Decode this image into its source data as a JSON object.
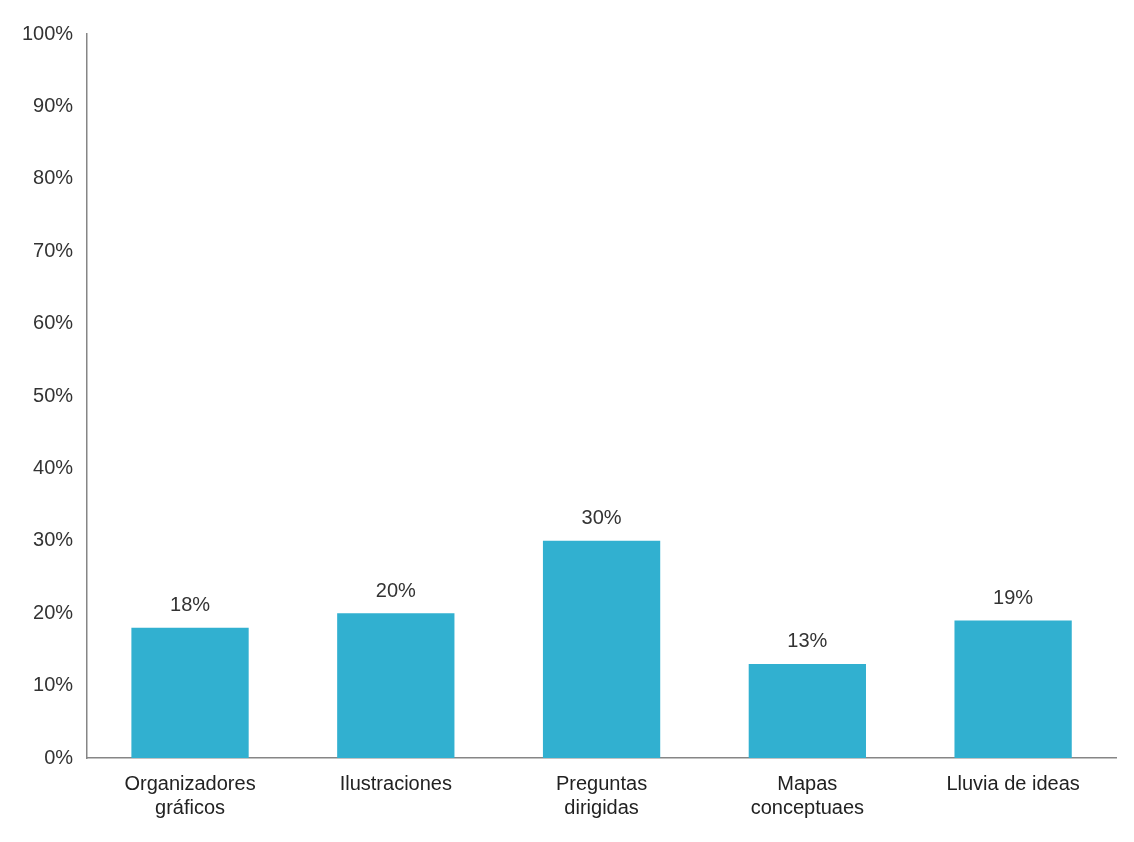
{
  "chart_data": {
    "type": "bar",
    "categories": [
      "Organizadores gráficos",
      "Ilustraciones",
      "Preguntas dirigidas",
      "Mapas conceptuaes",
      "Lluvia de ideas"
    ],
    "values": [
      18,
      20,
      30,
      13,
      19
    ],
    "value_labels": [
      "18%",
      "20%",
      "30%",
      "13%",
      "19%"
    ],
    "color": "#31b0d0",
    "ylim": [
      0,
      100
    ],
    "yticks": [
      {
        "value": 0,
        "label": "0%"
      },
      {
        "value": 10,
        "label": "10%"
      },
      {
        "value": 20,
        "label": "20%"
      },
      {
        "value": 30,
        "label": "30%"
      },
      {
        "value": 40,
        "label": "40%"
      },
      {
        "value": 50,
        "label": "50%"
      },
      {
        "value": 60,
        "label": "60%"
      },
      {
        "value": 70,
        "label": "70%"
      },
      {
        "value": 80,
        "label": "80%"
      },
      {
        "value": 90,
        "label": "90%"
      },
      {
        "value": 100,
        "label": "100%"
      }
    ],
    "grid": false,
    "legend": false
  }
}
